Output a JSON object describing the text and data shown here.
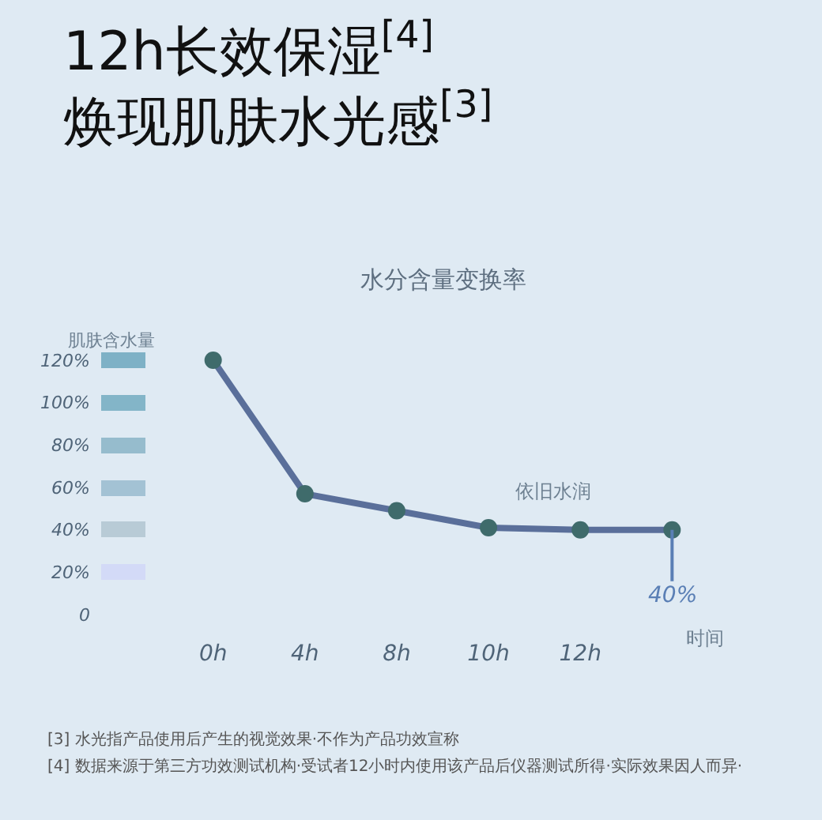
{
  "chart_data": {
    "type": "line",
    "title": "12h长效保湿$^{[4]}$\n焕现肌肤水光感$^{[3]}$",
    "subtitle": "水分含量变换率",
    "ylabel": "肌肤含水量",
    "xlabel": "时间",
    "categories": [
      "0h",
      "4h",
      "8h",
      "10h",
      "12h",
      null
    ],
    "series": [
      {
        "color": "#5a6f9a",
        "values": [
          120,
          57,
          49,
          41,
          40,
          40
        ],
        "value_labels": [
          null,
          null,
          null,
          null,
          null,
          "40%"
        ]
      }
    ],
    "ylim": [
      0,
      120
    ],
    "yticks": [
      {
        "value": 0,
        "label": "0"
      },
      {
        "value": 20,
        "label": "20%"
      },
      {
        "value": 40,
        "label": "40%"
      },
      {
        "value": 60,
        "label": "60%"
      },
      {
        "value": 80,
        "label": "80%"
      },
      {
        "value": 100,
        "label": "100%"
      },
      {
        "value": 120,
        "label": "120%"
      }
    ],
    "marker": "circle",
    "line_style": "solid",
    "annotations": [
      "依旧水润",
      "[3]  水光指产品使用后产生的视觉效果·不作为产品功效宣称",
      "[4]  数据来源于第三方功效测试机构·受试者12小时内使用该产品后仪器测试所得·实际效果因人而异·"
    ]
  }
}
